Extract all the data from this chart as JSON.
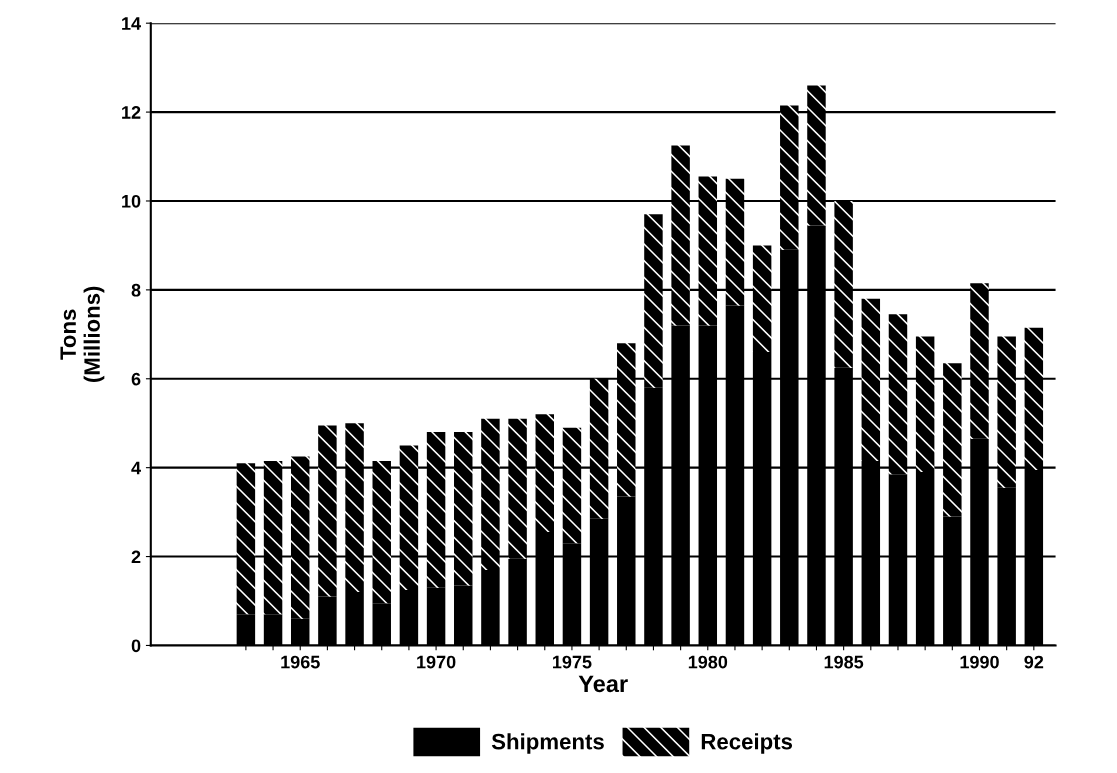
{
  "chart_data": {
    "type": "bar",
    "stacked": true,
    "xlabel": "Year",
    "ylabel": "Tons\n(Millions)",
    "categories": [
      null,
      null,
      "1965",
      null,
      null,
      null,
      null,
      "1970",
      null,
      null,
      null,
      null,
      "1975",
      null,
      null,
      null,
      null,
      "1980",
      null,
      null,
      null,
      null,
      "1985",
      null,
      null,
      null,
      null,
      "1990",
      null,
      "92"
    ],
    "series": [
      {
        "name": "Shipments",
        "color": "#000000",
        "values": [
          0.7,
          0.7,
          0.6,
          1.1,
          1.2,
          0.95,
          1.25,
          1.3,
          1.35,
          1.7,
          1.95,
          2.55,
          2.3,
          2.85,
          3.35,
          5.8,
          7.2,
          7.2,
          7.65,
          6.6,
          8.9,
          9.45,
          6.25,
          4.15,
          3.85,
          3.9,
          2.9,
          4.65,
          3.55,
          3.95
        ]
      },
      {
        "name": "Receipts",
        "color": "#000000",
        "values": [
          3.4,
          3.45,
          3.65,
          3.85,
          3.8,
          3.2,
          3.25,
          3.5,
          3.45,
          3.4,
          3.15,
          2.65,
          2.6,
          3.15,
          3.45,
          3.9,
          4.05,
          3.35,
          2.85,
          2.4,
          3.25,
          3.15,
          3.75,
          3.65,
          3.6,
          3.05,
          3.45,
          3.5,
          3.4,
          3.2
        ]
      }
    ],
    "ylim": [
      0,
      14
    ],
    "yticks": [
      0,
      2,
      4,
      6,
      8,
      10,
      12,
      14
    ],
    "grid": "y",
    "legend": "bottom"
  }
}
